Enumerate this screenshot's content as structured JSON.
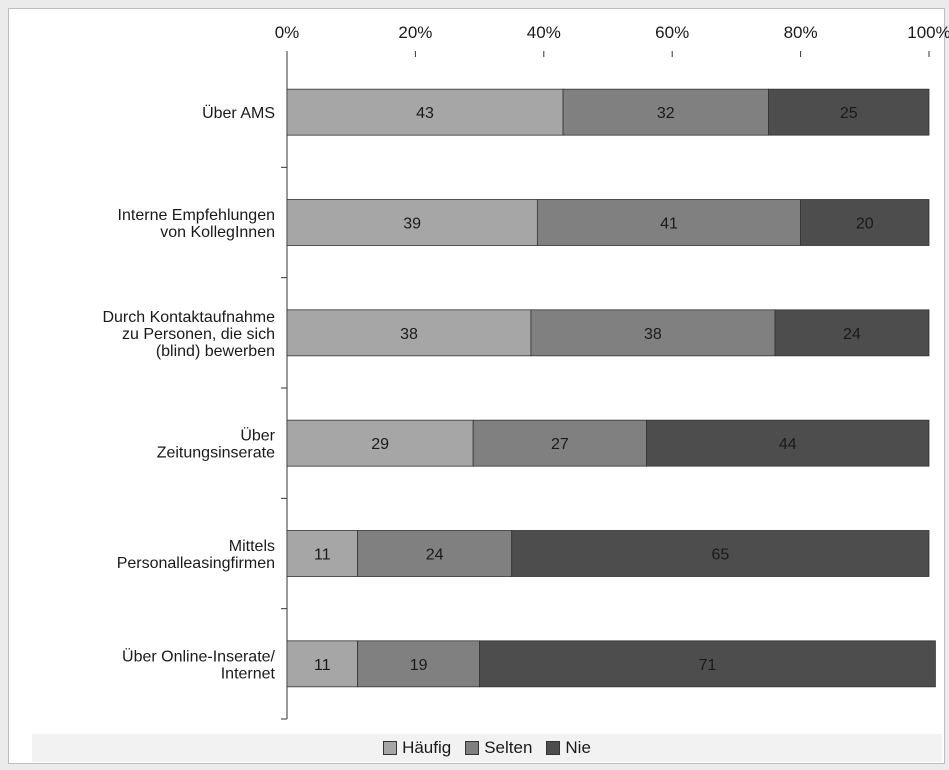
{
  "chart_data": {
    "type": "bar",
    "orientation": "horizontal",
    "stacked": true,
    "categories": [
      [
        "Über AMS"
      ],
      [
        "Interne Empfehlungen",
        "von KollegInnen"
      ],
      [
        "Durch Kontaktaufnahme",
        "zu Personen, die sich",
        "(blind) bewerben"
      ],
      [
        "Über",
        "Zeitungsinserate"
      ],
      [
        "Mittels",
        "Personalleasingfirmen"
      ],
      [
        "Über Online-Inserate/",
        "Internet"
      ]
    ],
    "series": [
      {
        "name": "Häufig",
        "color": "#a6a6a6",
        "values": [
          43,
          39,
          38,
          29,
          11,
          11
        ]
      },
      {
        "name": "Selten",
        "color": "#808080",
        "values": [
          32,
          41,
          38,
          27,
          24,
          19
        ]
      },
      {
        "name": "Nie",
        "color": "#4d4d4d",
        "values": [
          25,
          20,
          24,
          44,
          65,
          71
        ]
      }
    ],
    "xaxis": {
      "ticks": [
        0,
        20,
        40,
        60,
        80,
        100
      ],
      "tick_labels": [
        "0%",
        "20%",
        "40%",
        "60%",
        "80%",
        "100%"
      ],
      "position": "top"
    },
    "xlim": [
      0,
      100
    ],
    "legend_placement": "bottom",
    "grid": false
  }
}
